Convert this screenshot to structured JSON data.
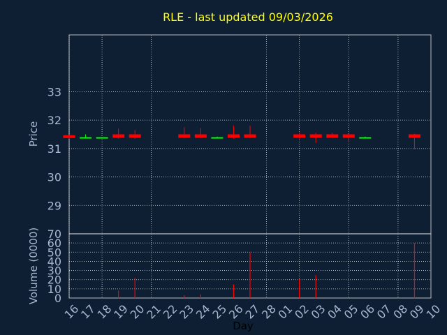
{
  "chart_data": [
    {
      "type": "candlestick",
      "title": "RLE - last updated 09/03/2026",
      "ylabel": "Price",
      "ylim": [
        28,
        35
      ],
      "yticks": [
        29,
        30,
        31,
        32,
        33
      ],
      "grid": true,
      "colors": {
        "down": "#ff0000",
        "up": "#00ff00",
        "grid": "#ffffff",
        "frame": "#ffffff",
        "axis_text": "#a8b8d0",
        "title": "#ffff00",
        "background": "#0f1f33"
      },
      "candles": [
        {
          "day": "16",
          "open": 31.47,
          "high": 31.47,
          "low": 31.35,
          "close": 31.37
        },
        {
          "day": "17",
          "open": 31.37,
          "high": 31.5,
          "low": 31.35,
          "close": 31.4
        },
        {
          "day": "18",
          "open": 31.37,
          "high": 31.4,
          "low": 31.35,
          "close": 31.4
        },
        {
          "day": "19",
          "open": 31.5,
          "high": 31.7,
          "low": 31.35,
          "close": 31.38
        },
        {
          "day": "20",
          "open": 31.5,
          "high": 31.65,
          "low": 31.35,
          "close": 31.38
        },
        {
          "day": "23",
          "open": 31.5,
          "high": 31.75,
          "low": 31.37,
          "close": 31.38
        },
        {
          "day": "24",
          "open": 31.5,
          "high": 31.72,
          "low": 31.37,
          "close": 31.38
        },
        {
          "day": "25",
          "open": 31.37,
          "high": 31.42,
          "low": 31.35,
          "close": 31.4
        },
        {
          "day": "26",
          "open": 31.5,
          "high": 31.8,
          "low": 31.35,
          "close": 31.38
        },
        {
          "day": "27",
          "open": 31.5,
          "high": 31.8,
          "low": 31.37,
          "close": 31.38
        },
        {
          "day": "02",
          "open": 31.5,
          "high": 31.55,
          "low": 31.35,
          "close": 31.38
        },
        {
          "day": "03",
          "open": 31.5,
          "high": 31.55,
          "low": 31.2,
          "close": 31.38
        },
        {
          "day": "04",
          "open": 31.5,
          "high": 31.55,
          "low": 31.37,
          "close": 31.38
        },
        {
          "day": "05",
          "open": 31.5,
          "high": 31.52,
          "low": 31.22,
          "close": 31.38
        },
        {
          "day": "06",
          "open": 31.37,
          "high": 31.42,
          "low": 31.35,
          "close": 31.4
        },
        {
          "day": "09",
          "open": 31.5,
          "high": 31.52,
          "low": 30.97,
          "close": 31.38
        }
      ]
    },
    {
      "type": "bar",
      "ylabel": "Volume (0000)",
      "ylim": [
        0,
        70
      ],
      "yticks": [
        0,
        10,
        20,
        30,
        40,
        50,
        60,
        70
      ],
      "xlabel": "Day",
      "grid": true,
      "color": "#ff0000",
      "categories": [
        "16",
        "17",
        "18",
        "19",
        "20",
        "21",
        "22",
        "23",
        "24",
        "25",
        "26",
        "27",
        "28",
        "01",
        "02",
        "03",
        "04",
        "05",
        "06",
        "07",
        "08",
        "09",
        "10"
      ],
      "values": [
        0,
        0,
        0,
        8,
        22,
        0,
        0,
        3,
        4,
        0,
        15,
        50,
        0,
        0,
        21,
        25,
        0,
        0,
        0,
        0,
        0,
        60,
        0
      ]
    }
  ]
}
